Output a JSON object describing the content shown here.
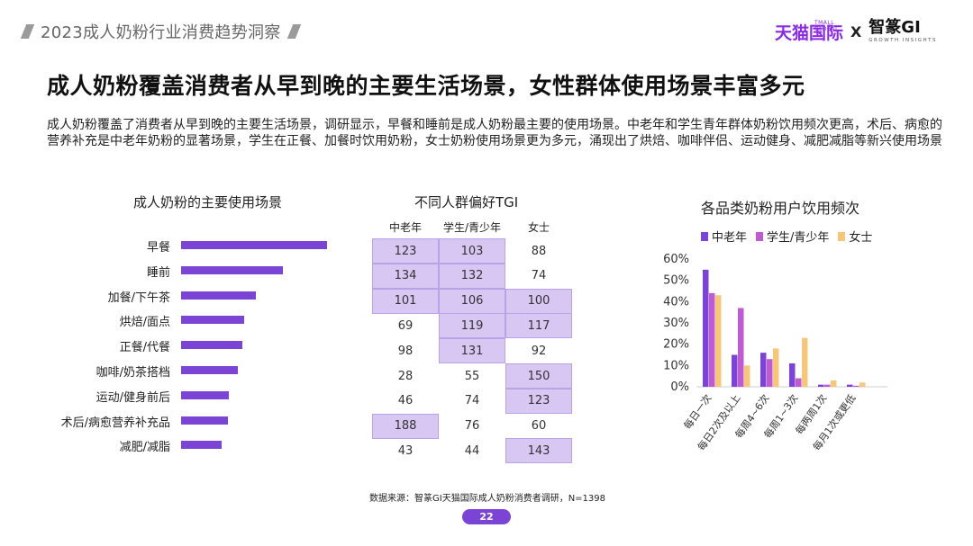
{
  "header": {
    "title": "2023成人奶粉行业消费趋势洞察"
  },
  "brand": {
    "tmall": "天猫国际",
    "tmall_sub": "TMALL GLOBAL",
    "x": "X",
    "zhizhan": "智篆GI",
    "zhizhan_sub": "GROWTH INSIGHTS",
    "accent_color": "#8a2be2"
  },
  "main_title": "成人奶粉覆盖消费者从早到晚的主要生活场景，女性群体使用场景丰富多元",
  "intro": "成人奶粉覆盖了消费者从早到晚的主要生活场景，调研显示，早餐和睡前是成人奶粉最主要的使用场景。中老年和学生青年群体奶粉饮用频次更高，术后、病愈的营养补充是中老年奶粉的显著场景，学生在正餐、加餐时饮用奶粉，女士奶粉使用场景更为多元，涌现出了烘焙、咖啡伴侣、运动健身、减肥减脂等新兴使用场景",
  "chart_data": [
    {
      "type": "bar",
      "orientation": "horizontal",
      "title": "成人奶粉的主要使用场景",
      "categories": [
        "早餐",
        "睡前",
        "加餐/下午茶",
        "烘焙/面点",
        "正餐/代餐",
        "咖啡/奶茶搭档",
        "运动/健身前后",
        "术后/病愈营养补充品",
        "减肥/减脂"
      ],
      "values": [
        100,
        70,
        51,
        43,
        42,
        39,
        33,
        32,
        28
      ],
      "color": "#7b44d4",
      "axis_labels_shown": false
    },
    {
      "type": "table",
      "title": "不同人群偏好TGI",
      "columns": [
        "中老年",
        "学生/青少年",
        "女士"
      ],
      "rows": [
        [
          123,
          103,
          88
        ],
        [
          134,
          132,
          74
        ],
        [
          101,
          106,
          100
        ],
        [
          69,
          119,
          117
        ],
        [
          98,
          131,
          92
        ],
        [
          28,
          55,
          150
        ],
        [
          46,
          74,
          123
        ],
        [
          188,
          76,
          60
        ],
        [
          43,
          44,
          143
        ]
      ],
      "highlight_threshold": 100,
      "highlight_color": "#d8c6f3"
    },
    {
      "type": "bar",
      "title": "各品类奶粉用户饮用频次",
      "categories": [
        "每日一次",
        "每日2次及以上",
        "每周4~6次",
        "每周1~3次",
        "每两周1次",
        "每月1次或更低"
      ],
      "series": [
        {
          "name": "中老年",
          "color": "#7b44d4",
          "values": [
            55,
            15,
            16,
            11,
            1,
            1
          ]
        },
        {
          "name": "学生/青少年",
          "color": "#c05ad2",
          "values": [
            44,
            37,
            13,
            4,
            1,
            0.5
          ]
        },
        {
          "name": "女士",
          "color": "#f6c77a",
          "values": [
            43,
            10,
            18,
            23,
            3,
            2
          ]
        }
      ],
      "yticks": [
        "0%",
        "10%",
        "20%",
        "30%",
        "40%",
        "50%",
        "60%"
      ],
      "ylim": [
        0,
        60
      ],
      "legend": "top"
    }
  ],
  "source": "数据来源：智篆GI天猫国际成人奶粉消费者调研，N=1398",
  "page_number": "22"
}
